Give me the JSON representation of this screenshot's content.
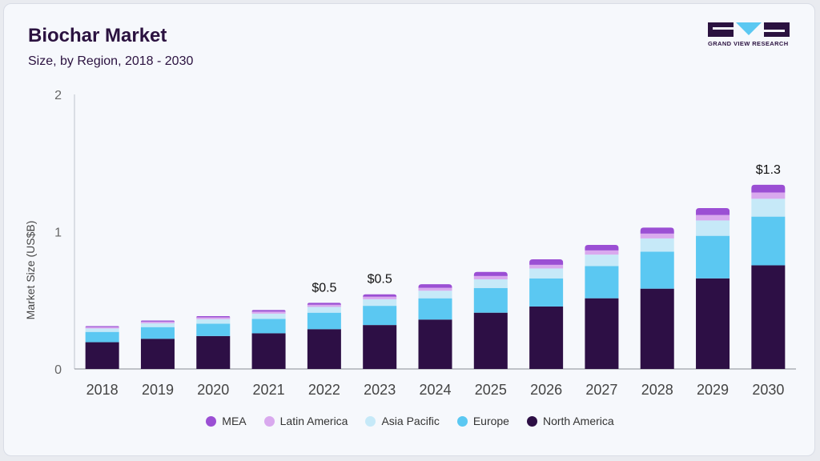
{
  "header": {
    "title": "Biochar Market",
    "subtitle": "Size, by Region, 2018 - 2030",
    "logo_text": "GRAND VIEW RESEARCH"
  },
  "colors": {
    "north_america": "#2d0f45",
    "europe": "#5bc8f2",
    "asia_pacific": "#c6e9f8",
    "latin_america": "#d9a9ee",
    "mea": "#9b4fd4",
    "logo_dark": "#2b1240",
    "logo_blue": "#5bc8f2"
  },
  "chart_data": {
    "type": "bar",
    "stacked": true,
    "categories": [
      "2018",
      "2019",
      "2020",
      "2021",
      "2022",
      "2023",
      "2024",
      "2025",
      "2026",
      "2027",
      "2028",
      "2029",
      "2030"
    ],
    "ylabel": "Market Size (US$B)",
    "xlabel": "",
    "ylim": [
      0,
      2
    ],
    "yticks": [
      0,
      1,
      2
    ],
    "grid": false,
    "legend_position": "bottom",
    "series": [
      {
        "name": "North America",
        "color_key": "north_america",
        "values": [
          0.195,
          0.22,
          0.24,
          0.26,
          0.29,
          0.32,
          0.36,
          0.41,
          0.455,
          0.515,
          0.585,
          0.66,
          0.755
        ]
      },
      {
        "name": "Europe",
        "color_key": "europe",
        "values": [
          0.075,
          0.085,
          0.09,
          0.105,
          0.12,
          0.14,
          0.155,
          0.18,
          0.205,
          0.235,
          0.27,
          0.31,
          0.355
        ]
      },
      {
        "name": "Asia Pacific",
        "color_key": "asia_pacific",
        "values": [
          0.025,
          0.028,
          0.033,
          0.038,
          0.042,
          0.048,
          0.055,
          0.063,
          0.072,
          0.083,
          0.096,
          0.112,
          0.13
        ]
      },
      {
        "name": "Latin America",
        "color_key": "latin_america",
        "values": [
          0.01,
          0.012,
          0.013,
          0.015,
          0.016,
          0.018,
          0.021,
          0.024,
          0.027,
          0.031,
          0.035,
          0.04,
          0.046
        ]
      },
      {
        "name": "MEA",
        "color_key": "mea",
        "values": [
          0.007,
          0.008,
          0.009,
          0.011,
          0.014,
          0.018,
          0.026,
          0.03,
          0.04,
          0.04,
          0.044,
          0.05,
          0.056
        ]
      }
    ],
    "annotations": [
      {
        "category": "2022",
        "text": "$0.5"
      },
      {
        "category": "2023",
        "text": "$0.5"
      },
      {
        "category": "2030",
        "text": "$1.3"
      }
    ],
    "legend_order": [
      "MEA",
      "Latin America",
      "Asia Pacific",
      "Europe",
      "North America"
    ]
  }
}
